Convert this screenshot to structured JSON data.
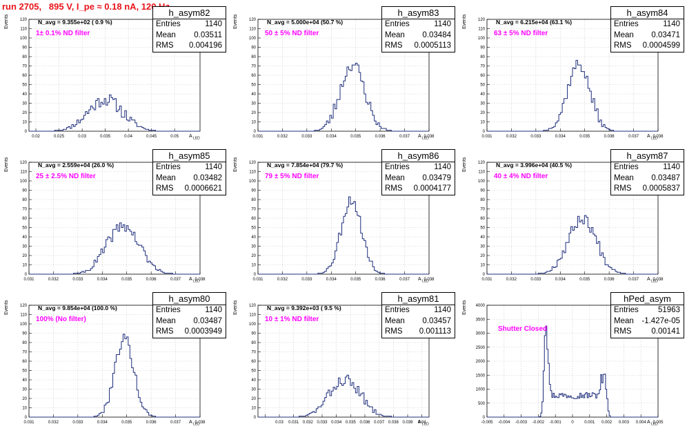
{
  "header": {
    "title": "run 2705,   895 V, I_pe ≈ 0.18 nA, 120 Hz"
  },
  "common": {
    "ylabel": "Events",
    "xlabel_main": "A",
    "xlabel_sub": "LED"
  },
  "chart_data": [
    {
      "type": "histogram",
      "title": "h_asym82",
      "stats": {
        "Entries": "1140",
        "Mean": "0.03511",
        "RMS": "0.004196"
      },
      "annotation_navg": "N_avg = 9.355e+02 ( 0.9 %)",
      "annotation_filter": "1± 0.1% ND filter",
      "xlim": [
        0.0185,
        0.0555
      ],
      "ylim": [
        0,
        120
      ],
      "xticks": [
        0.02,
        0.025,
        0.03,
        0.035,
        0.04,
        0.045,
        0.05
      ],
      "xticklabels": [
        "0.02",
        "0.025",
        "0.03",
        "0.035",
        "0.04",
        "0.045",
        "0.05"
      ],
      "yticks": [
        0,
        10,
        20,
        30,
        40,
        50,
        60,
        70,
        80,
        90,
        100,
        110,
        120
      ],
      "peaks": [
        {
          "center": 0.035,
          "sigma": 0.0038,
          "amp": 34
        }
      ],
      "noise": 7,
      "seed": 11
    },
    {
      "type": "histogram",
      "title": "h_asym83",
      "stats": {
        "Entries": "1140",
        "Mean": "0.03484",
        "RMS": "0.0005113"
      },
      "annotation_navg": "N_avg = 5.000e+04 (50.7 %)",
      "annotation_filter": "50 ± 5% ND filter",
      "xlim": [
        0.031,
        0.038
      ],
      "ylim": [
        0,
        120
      ],
      "xticks": [
        0.031,
        0.032,
        0.033,
        0.034,
        0.035,
        0.036,
        0.037,
        0.038
      ],
      "xticklabels": [
        "0.031",
        "0.032",
        "0.033",
        "0.034",
        "0.035",
        "0.036",
        "0.037",
        "0.038"
      ],
      "yticks": [
        0,
        10,
        20,
        30,
        40,
        50,
        60,
        70,
        80,
        90,
        100,
        110,
        120
      ],
      "peaks": [
        {
          "center": 0.03487,
          "sigma": 0.0005,
          "amp": 72
        }
      ],
      "noise": 7,
      "seed": 23
    },
    {
      "type": "histogram",
      "title": "h_asym84",
      "stats": {
        "Entries": "1140",
        "Mean": "0.03471",
        "RMS": "0.0004599"
      },
      "annotation_navg": "N_avg = 6.215e+04 (63.1 %)",
      "annotation_filter": "63 ± 5% ND filter",
      "xlim": [
        0.031,
        0.038
      ],
      "ylim": [
        0,
        120
      ],
      "xticks": [
        0.031,
        0.032,
        0.033,
        0.034,
        0.035,
        0.036,
        0.037,
        0.038
      ],
      "xticklabels": [
        "0.031",
        "0.032",
        "0.033",
        "0.034",
        "0.035",
        "0.036",
        "0.037",
        "0.038"
      ],
      "yticks": [
        0,
        10,
        20,
        30,
        40,
        50,
        60,
        70,
        80,
        90,
        100,
        110,
        120
      ],
      "peaks": [
        {
          "center": 0.03475,
          "sigma": 0.00046,
          "amp": 72
        }
      ],
      "noise": 6,
      "seed": 37
    },
    {
      "type": "histogram",
      "title": "h_asym85",
      "stats": {
        "Entries": "1140",
        "Mean": "0.03482",
        "RMS": "0.0006621"
      },
      "annotation_navg": "N_avg = 2.559e+04 (26.0 %)",
      "annotation_filter": "25 ± 2.5% ND filter",
      "xlim": [
        0.031,
        0.038
      ],
      "ylim": [
        0,
        120
      ],
      "xticks": [
        0.031,
        0.032,
        0.033,
        0.034,
        0.035,
        0.036,
        0.037,
        0.038
      ],
      "xticklabels": [
        "0.031",
        "0.032",
        "0.033",
        "0.034",
        "0.035",
        "0.036",
        "0.037",
        "0.038"
      ],
      "yticks": [
        0,
        10,
        20,
        30,
        40,
        50,
        60,
        70,
        80,
        90,
        100,
        110,
        120
      ],
      "peaks": [
        {
          "center": 0.03485,
          "sigma": 0.00066,
          "amp": 52
        }
      ],
      "noise": 6,
      "seed": 41
    },
    {
      "type": "histogram",
      "title": "h_asym86",
      "stats": {
        "Entries": "1140",
        "Mean": "0.03479",
        "RMS": "0.0004177"
      },
      "annotation_navg": "N_avg = 7.854e+04 (79.7 %)",
      "annotation_filter": "79 ± 5% ND filter",
      "xlim": [
        0.031,
        0.038
      ],
      "ylim": [
        0,
        120
      ],
      "xticks": [
        0.031,
        0.032,
        0.033,
        0.034,
        0.035,
        0.036,
        0.037,
        0.038
      ],
      "xticklabels": [
        "0.031",
        "0.032",
        "0.033",
        "0.034",
        "0.035",
        "0.036",
        "0.037",
        "0.038"
      ],
      "yticks": [
        0,
        10,
        20,
        30,
        40,
        50,
        60,
        70,
        80,
        90,
        100,
        110,
        120
      ],
      "peaks": [
        {
          "center": 0.03482,
          "sigma": 0.00042,
          "amp": 80
        }
      ],
      "noise": 6,
      "seed": 53
    },
    {
      "type": "histogram",
      "title": "h_asym87",
      "stats": {
        "Entries": "1140",
        "Mean": "0.03487",
        "RMS": "0.0005837"
      },
      "annotation_navg": "N_avg = 3.996e+04 (40.5 %)",
      "annotation_filter": "40 ± 4% ND filter",
      "xlim": [
        0.031,
        0.038
      ],
      "ylim": [
        0,
        120
      ],
      "xticks": [
        0.031,
        0.032,
        0.033,
        0.034,
        0.035,
        0.036,
        0.037,
        0.038
      ],
      "xticklabels": [
        "0.031",
        "0.032",
        "0.033",
        "0.034",
        "0.035",
        "0.036",
        "0.037",
        "0.038"
      ],
      "yticks": [
        0,
        10,
        20,
        30,
        40,
        50,
        60,
        70,
        80,
        90,
        100,
        110,
        120
      ],
      "peaks": [
        {
          "center": 0.0349,
          "sigma": 0.00058,
          "amp": 60
        }
      ],
      "noise": 6,
      "seed": 67
    },
    {
      "type": "histogram",
      "title": "h_asym80",
      "stats": {
        "Entries": "1140",
        "Mean": "0.03487",
        "RMS": "0.0003949"
      },
      "annotation_navg": "N_avg = 9.854e+04 (100.0 %)",
      "annotation_filter": "100% (No filter)",
      "xlim": [
        0.031,
        0.038
      ],
      "ylim": [
        0,
        120
      ],
      "xticks": [
        0.031,
        0.032,
        0.033,
        0.034,
        0.035,
        0.036,
        0.037,
        0.038
      ],
      "xticklabels": [
        "0.031",
        "0.032",
        "0.033",
        "0.034",
        "0.035",
        "0.036",
        "0.037",
        "0.038"
      ],
      "yticks": [
        0,
        10,
        20,
        30,
        40,
        50,
        60,
        70,
        80,
        90,
        100,
        110,
        120
      ],
      "peaks": [
        {
          "center": 0.0349,
          "sigma": 0.00039,
          "amp": 85
        }
      ],
      "noise": 6,
      "seed": 79
    },
    {
      "type": "histogram",
      "title": "h_asym81",
      "stats": {
        "Entries": "1140",
        "Mean": "0.03457",
        "RMS": "0.001113"
      },
      "annotation_navg": "N_avg = 9.392e+03 ( 9.5 %)",
      "annotation_filter": "10 ± 1% ND filter",
      "xlim": [
        0.0285,
        0.0405
      ],
      "ylim": [
        0,
        120
      ],
      "xticks": [
        0.029,
        0.03,
        0.031,
        0.032,
        0.033,
        0.034,
        0.035,
        0.036,
        0.037,
        0.038,
        0.039,
        0.04
      ],
      "xticklabels": [
        "",
        "0.03",
        "0.031",
        "0.032",
        "0.033",
        "0.034",
        "0.035",
        "0.036",
        "0.037",
        "0.038",
        "0.039",
        "0.04"
      ],
      "yticks": [
        0,
        10,
        20,
        30,
        40,
        50,
        60,
        70,
        80,
        90,
        100,
        110,
        120
      ],
      "peaks": [
        {
          "center": 0.0346,
          "sigma": 0.0011,
          "amp": 40
        }
      ],
      "noise": 6,
      "seed": 83
    },
    {
      "type": "histogram",
      "title": "hPed_asym",
      "stats": {
        "Entries": "51963",
        "Mean": "-1.427e-05",
        "RMS": "0.00141"
      },
      "annotation_navg": "",
      "annotation_filter": "Shutter Closed",
      "xlim": [
        -0.005,
        0.005
      ],
      "ylim": [
        0,
        4000
      ],
      "xticks": [
        -0.005,
        -0.004,
        -0.003,
        -0.002,
        -0.001,
        0,
        0.001,
        0.002,
        0.003,
        0.004,
        0.005
      ],
      "xticklabels": [
        "-0.005",
        "-0.004",
        "-0.003",
        "-0.002",
        "-0.001",
        "0",
        "0.001",
        "0.002",
        "0.003",
        "0.004",
        "0.005"
      ],
      "yticks": [
        0,
        500,
        1000,
        1500,
        2000,
        2500,
        3000,
        3500,
        4000
      ],
      "peaks": [
        {
          "center": -0.00155,
          "sigma": 0.00011,
          "amp": 3400
        },
        {
          "center": 0.00185,
          "sigma": 0.00013,
          "amp": 1550
        }
      ],
      "plateau": {
        "from": -0.0014,
        "to": 0.0017,
        "level": 780
      },
      "noise": 120,
      "seed": 97
    }
  ]
}
